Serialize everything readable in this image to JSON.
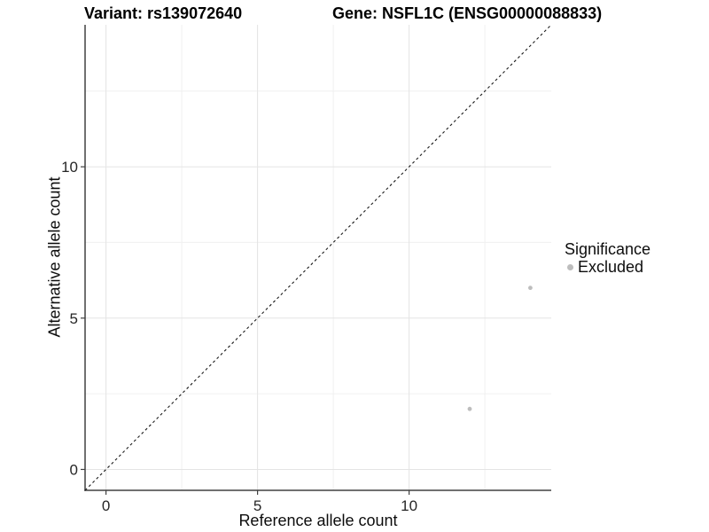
{
  "header": {
    "title_left": "Variant: rs139072640",
    "title_right": "Gene: NSFL1C (ENSG00000088833)"
  },
  "chart_data": {
    "type": "scatter",
    "title_left": "Variant: rs139072640",
    "title_right": "Gene: NSFL1C (ENSG00000088833)",
    "xlabel": "Reference allele count",
    "ylabel": "Alternative allele count",
    "xlim": [
      -0.69,
      14.69
    ],
    "ylim": [
      -0.69,
      14.69
    ],
    "xticks": [
      0,
      5,
      10
    ],
    "yticks": [
      0,
      5,
      10
    ],
    "minor_gridlines": [
      2.5,
      7.5,
      12.5
    ],
    "grid": true,
    "identity_line": {
      "style": "dashed",
      "slope": 1,
      "intercept": 0,
      "color": "#1a1a1a"
    },
    "series": [
      {
        "name": "Excluded",
        "color": "#bdbdbd",
        "points": [
          {
            "x": 12,
            "y": 2
          },
          {
            "x": 14,
            "y": 6
          }
        ]
      }
    ],
    "legend": {
      "title": "Significance",
      "position": "right",
      "items": [
        {
          "label": "Excluded",
          "color": "#bdbdbd",
          "marker": "circle-icon"
        }
      ]
    },
    "colors": {
      "background": "#ffffff",
      "axis_line": "#404040",
      "tick_text": "#262626",
      "grid_major": "#e4e4e4",
      "grid_minor": "#f0f0f0",
      "point": "#bdbdbd"
    }
  }
}
